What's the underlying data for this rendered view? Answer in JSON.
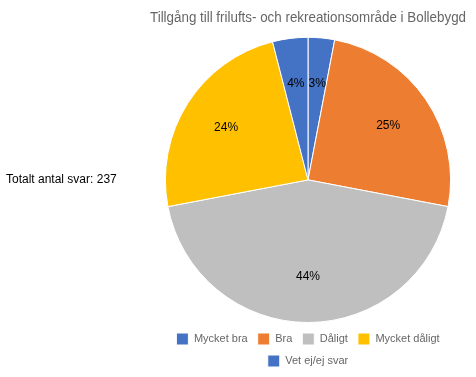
{
  "chart_data": {
    "type": "pie",
    "title": "Tillgång till frilufts- och rekreationsområde i Bollebygd",
    "annotations": [
      "Totalt antal svar: 237"
    ],
    "categories": [
      "Mycket bra",
      "Bra",
      "Dåligt",
      "Mycket dåligt",
      "Vet ej/ej svar"
    ],
    "values": [
      3,
      25,
      44,
      24,
      4
    ],
    "value_labels": [
      "3%",
      "25%",
      "44%",
      "24%",
      "4%"
    ],
    "colors": [
      "#4472C4",
      "#ED7D31",
      "#BFBFBF",
      "#FFC000",
      "#4472C4"
    ],
    "data_labels": true,
    "legend": "bottom"
  }
}
